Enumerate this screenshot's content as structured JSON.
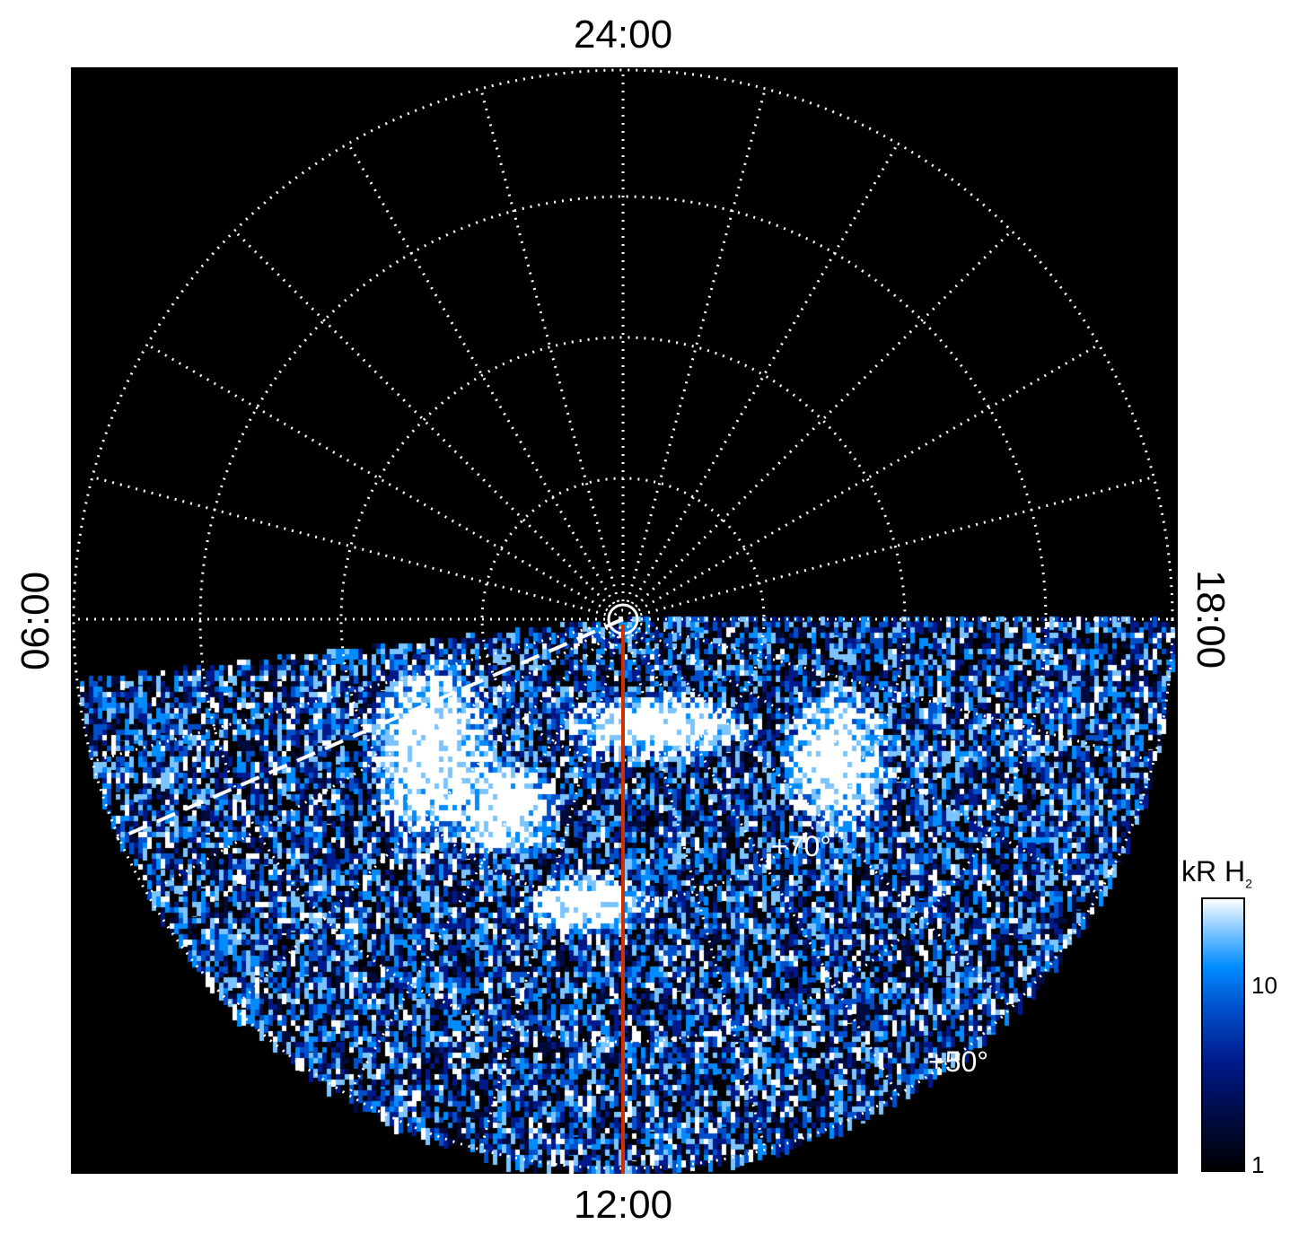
{
  "chart_data": {
    "type": "heatmap",
    "projection": "polar",
    "labels": {
      "top": "24:00",
      "bottom": "12:00",
      "left": "06:00",
      "right": "18:00"
    },
    "latitude_labels": [
      "+70°",
      "+50°"
    ],
    "latitude_rings": [
      90,
      80,
      70,
      60,
      50
    ],
    "hour_lines_every": 1,
    "colorbar": {
      "title": "kR H",
      "title_subscript": "2",
      "scale": "log",
      "range": [
        1,
        30
      ],
      "ticks": [
        "1",
        "10"
      ]
    },
    "colormap": [
      "#000000",
      "#000a3c",
      "#001a8c",
      "#0050cc",
      "#008cff",
      "#7cc4ff",
      "#ffffff"
    ],
    "overlays": {
      "meridian_line_color": "#d03000",
      "dashed_line_color": "#ffffff",
      "grid_color": "#ffffff"
    }
  }
}
